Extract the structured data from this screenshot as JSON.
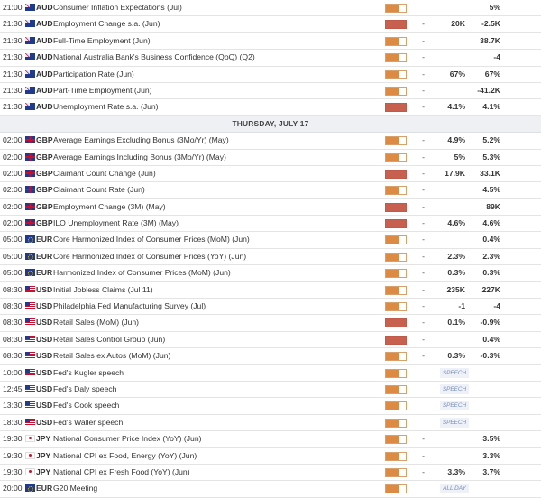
{
  "colors": {
    "medium": "#dd8a45",
    "high": "#c8604f",
    "tag": "#7a8fb5"
  },
  "day_header": "THURSDAY, JULY 17",
  "rows_before": [
    {
      "time": "21:00",
      "flag": "au",
      "flag_icon": "australia-flag-icon",
      "currency": "AUD",
      "event": "Consumer Inflation Expectations (Jul)",
      "impact": "medium",
      "actual": "",
      "forecast": "",
      "previous": "5%"
    },
    {
      "time": "21:30",
      "flag": "au",
      "flag_icon": "australia-flag-icon",
      "currency": "AUD",
      "event": "Employment Change s.a. (Jun)",
      "impact": "high",
      "actual": "-",
      "forecast": "20K",
      "previous": "-2.5K"
    },
    {
      "time": "21:30",
      "flag": "au",
      "flag_icon": "australia-flag-icon",
      "currency": "AUD",
      "event": "Full-Time Employment (Jun)",
      "impact": "medium",
      "actual": "-",
      "forecast": "",
      "previous": "38.7K"
    },
    {
      "time": "21:30",
      "flag": "au",
      "flag_icon": "australia-flag-icon",
      "currency": "AUD",
      "event": "National Australia Bank's Business Confidence (QoQ) (Q2)",
      "impact": "medium",
      "actual": "-",
      "forecast": "",
      "previous": "-4"
    },
    {
      "time": "21:30",
      "flag": "au",
      "flag_icon": "australia-flag-icon",
      "currency": "AUD",
      "event": "Participation Rate (Jun)",
      "impact": "medium",
      "actual": "-",
      "forecast": "67%",
      "previous": "67%"
    },
    {
      "time": "21:30",
      "flag": "au",
      "flag_icon": "australia-flag-icon",
      "currency": "AUD",
      "event": "Part-Time Employment (Jun)",
      "impact": "medium",
      "actual": "-",
      "forecast": "",
      "previous": "-41.2K"
    },
    {
      "time": "21:30",
      "flag": "au",
      "flag_icon": "australia-flag-icon",
      "currency": "AUD",
      "event": "Unemployment Rate s.a. (Jun)",
      "impact": "high",
      "actual": "-",
      "forecast": "4.1%",
      "previous": "4.1%"
    }
  ],
  "rows_after": [
    {
      "time": "02:00",
      "flag": "gb",
      "flag_icon": "uk-flag-icon",
      "currency": "GBP",
      "event": "Average Earnings Excluding Bonus (3Mo/Yr) (May)",
      "impact": "medium",
      "actual": "-",
      "forecast": "4.9%",
      "previous": "5.2%"
    },
    {
      "time": "02:00",
      "flag": "gb",
      "flag_icon": "uk-flag-icon",
      "currency": "GBP",
      "event": "Average Earnings Including Bonus (3Mo/Yr) (May)",
      "impact": "medium",
      "actual": "-",
      "forecast": "5%",
      "previous": "5.3%"
    },
    {
      "time": "02:00",
      "flag": "gb",
      "flag_icon": "uk-flag-icon",
      "currency": "GBP",
      "event": "Claimant Count Change (Jun)",
      "impact": "high",
      "actual": "-",
      "forecast": "17.9K",
      "previous": "33.1K"
    },
    {
      "time": "02:00",
      "flag": "gb",
      "flag_icon": "uk-flag-icon",
      "currency": "GBP",
      "event": "Claimant Count Rate (Jun)",
      "impact": "medium",
      "actual": "-",
      "forecast": "",
      "previous": "4.5%"
    },
    {
      "time": "02:00",
      "flag": "gb",
      "flag_icon": "uk-flag-icon",
      "currency": "GBP",
      "event": "Employment Change (3M) (May)",
      "impact": "high",
      "actual": "-",
      "forecast": "",
      "previous": "89K"
    },
    {
      "time": "02:00",
      "flag": "gb",
      "flag_icon": "uk-flag-icon",
      "currency": "GBP",
      "event": "ILO Unemployment Rate (3M) (May)",
      "impact": "high",
      "actual": "-",
      "forecast": "4.6%",
      "previous": "4.6%"
    },
    {
      "time": "05:00",
      "flag": "eu",
      "flag_icon": "eu-flag-icon",
      "currency": "EUR",
      "event": "Core Harmonized Index of Consumer Prices (MoM) (Jun)",
      "impact": "medium",
      "actual": "-",
      "forecast": "",
      "previous": "0.4%"
    },
    {
      "time": "05:00",
      "flag": "eu",
      "flag_icon": "eu-flag-icon",
      "currency": "EUR",
      "event": "Core Harmonized Index of Consumer Prices (YoY) (Jun)",
      "impact": "medium",
      "actual": "-",
      "forecast": "2.3%",
      "previous": "2.3%"
    },
    {
      "time": "05:00",
      "flag": "eu",
      "flag_icon": "eu-flag-icon",
      "currency": "EUR",
      "event": "Harmonized Index of Consumer Prices (MoM) (Jun)",
      "impact": "medium",
      "actual": "-",
      "forecast": "0.3%",
      "previous": "0.3%"
    },
    {
      "time": "08:30",
      "flag": "us",
      "flag_icon": "us-flag-icon",
      "currency": "USD",
      "event": "Initial Jobless Claims (Jul 11)",
      "impact": "medium",
      "actual": "-",
      "forecast": "235K",
      "previous": "227K"
    },
    {
      "time": "08:30",
      "flag": "us",
      "flag_icon": "us-flag-icon",
      "currency": "USD",
      "event": "Philadelphia Fed Manufacturing Survey (Jul)",
      "impact": "medium",
      "actual": "-",
      "forecast": "-1",
      "previous": "-4"
    },
    {
      "time": "08:30",
      "flag": "us",
      "flag_icon": "us-flag-icon",
      "currency": "USD",
      "event": "Retail Sales (MoM) (Jun)",
      "impact": "high",
      "actual": "-",
      "forecast": "0.1%",
      "previous": "-0.9%"
    },
    {
      "time": "08:30",
      "flag": "us",
      "flag_icon": "us-flag-icon",
      "currency": "USD",
      "event": "Retail Sales Control Group (Jun)",
      "impact": "high",
      "actual": "-",
      "forecast": "",
      "previous": "0.4%"
    },
    {
      "time": "08:30",
      "flag": "us",
      "flag_icon": "us-flag-icon",
      "currency": "USD",
      "event": "Retail Sales ex Autos (MoM) (Jun)",
      "impact": "medium",
      "actual": "-",
      "forecast": "0.3%",
      "previous": "-0.3%"
    },
    {
      "time": "10:00",
      "flag": "us",
      "flag_icon": "us-flag-icon",
      "currency": "USD",
      "event": "Fed's Kugler speech",
      "impact": "medium",
      "tag": "SPEECH"
    },
    {
      "time": "12:45",
      "flag": "us",
      "flag_icon": "us-flag-icon",
      "currency": "USD",
      "event": "Fed's Daly speech",
      "impact": "medium",
      "tag": "SPEECH"
    },
    {
      "time": "13:30",
      "flag": "us",
      "flag_icon": "us-flag-icon",
      "currency": "USD",
      "event": "Fed's Cook speech",
      "impact": "medium",
      "tag": "SPEECH"
    },
    {
      "time": "18:30",
      "flag": "us",
      "flag_icon": "us-flag-icon",
      "currency": "USD",
      "event": "Fed's Waller speech",
      "impact": "medium",
      "tag": "SPEECH"
    },
    {
      "time": "19:30",
      "flag": "jp",
      "flag_icon": "japan-flag-icon",
      "currency": "JPY",
      "event": "National Consumer Price Index (YoY) (Jun)",
      "impact": "medium",
      "actual": "-",
      "forecast": "",
      "previous": "3.5%"
    },
    {
      "time": "19:30",
      "flag": "jp",
      "flag_icon": "japan-flag-icon",
      "currency": "JPY",
      "event": "National CPI ex Food, Energy (YoY) (Jun)",
      "impact": "medium",
      "actual": "-",
      "forecast": "",
      "previous": "3.3%"
    },
    {
      "time": "19:30",
      "flag": "jp",
      "flag_icon": "japan-flag-icon",
      "currency": "JPY",
      "event": "National CPI ex Fresh Food (YoY) (Jun)",
      "impact": "medium",
      "actual": "-",
      "forecast": "3.3%",
      "previous": "3.7%"
    },
    {
      "time": "20:00",
      "flag": "eu",
      "flag_icon": "eu-flag-icon",
      "currency": "EUR",
      "event": "G20 Meeting",
      "impact": "medium",
      "tag": "ALL DAY"
    }
  ]
}
